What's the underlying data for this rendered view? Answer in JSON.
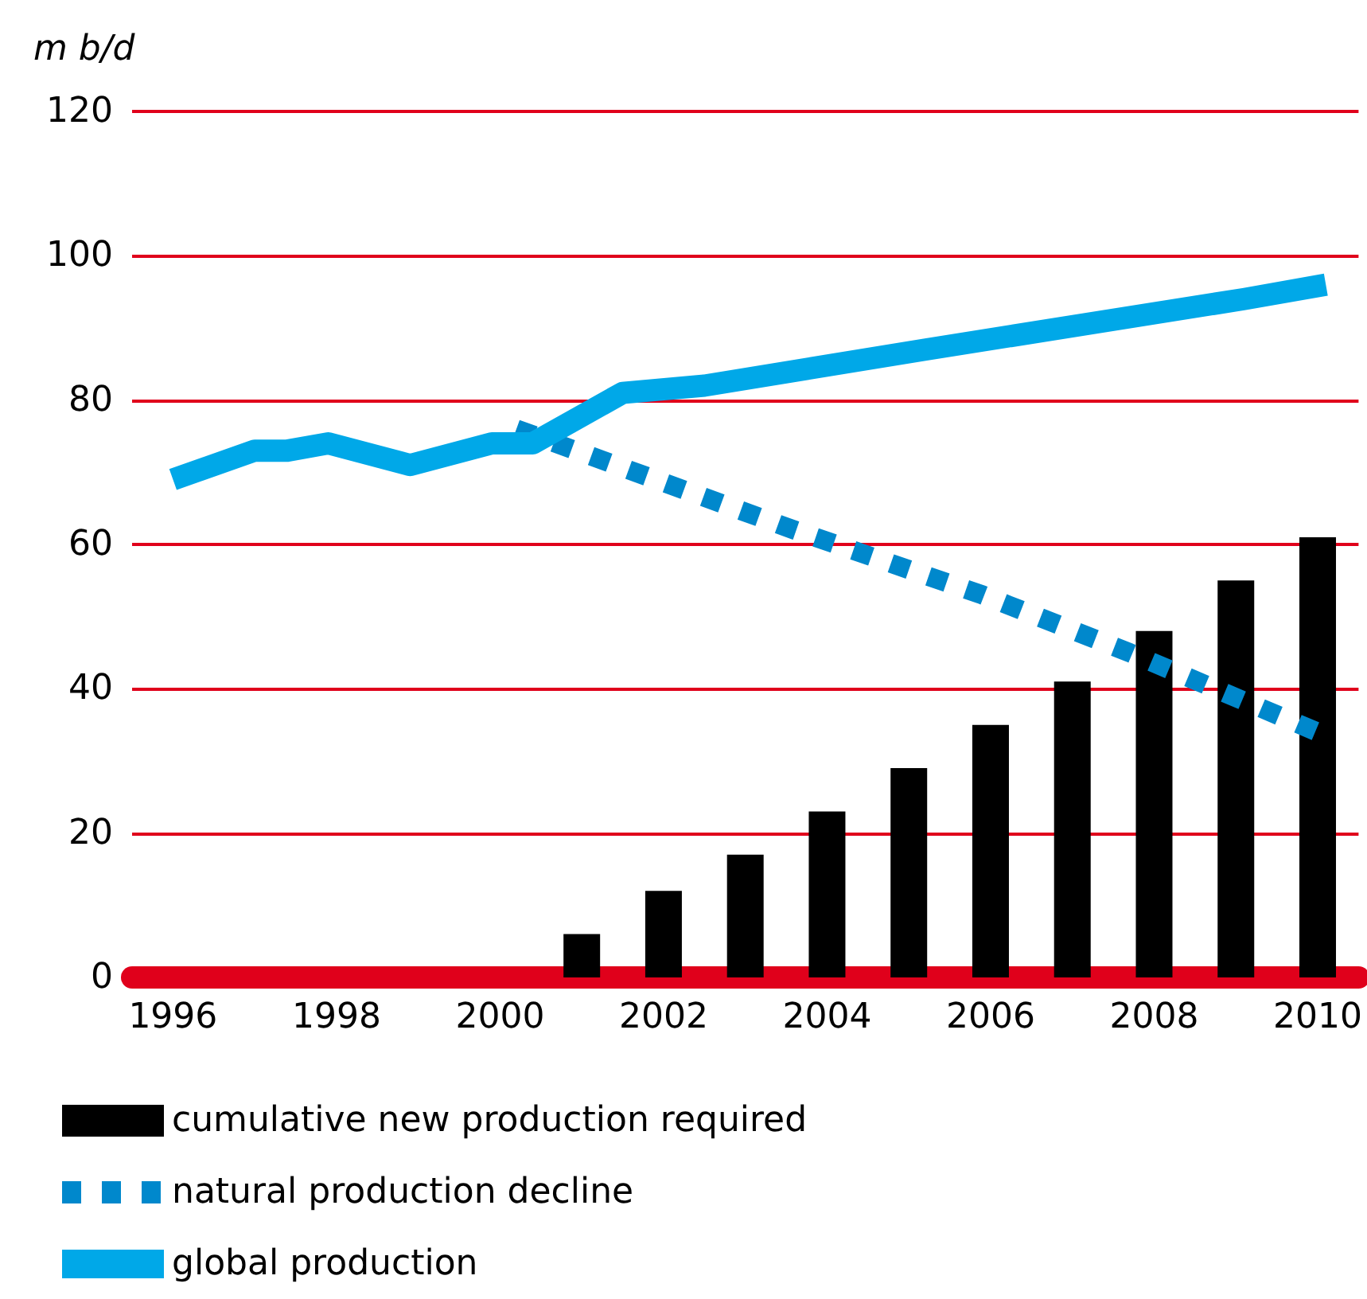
{
  "chart_data": {
    "type": "bar",
    "ylabel": "m b/d",
    "xlim": [
      1995.5,
      2010.5
    ],
    "xticks": [
      1996,
      1998,
      2000,
      2002,
      2004,
      2006,
      2008,
      2010
    ],
    "ylim": [
      0,
      120
    ],
    "yticks": [
      0,
      20,
      40,
      60,
      80,
      100,
      120
    ],
    "grid": "y",
    "legend": "bottom left",
    "series": [
      {
        "name": "cumulative new production required",
        "color": "#000000",
        "x": [
          2001,
          2002,
          2003,
          2004,
          2005,
          2006,
          2007,
          2008,
          2009,
          2010
        ],
        "values": [
          6,
          12,
          17,
          23,
          29,
          35,
          41,
          48,
          55,
          61
        ]
      },
      {
        "name": "natural production decline",
        "type": "line",
        "line_style": "dotted",
        "color": "#0088cc",
        "x": [
          2000.2,
          2003.6,
          2005.9,
          2007.7,
          2010
        ],
        "values": [
          76,
          62,
          53,
          45,
          34
        ]
      },
      {
        "name": "global production",
        "type": "line",
        "line_style": "solid",
        "color": "#00a8e8",
        "x": [
          1996,
          1997,
          1997.4,
          1997.9,
          1998.9,
          1999.9,
          2000.4,
          2001.5,
          2002.5,
          2005.2,
          2009.1,
          2010.1
        ],
        "values": [
          69,
          73,
          73,
          74,
          71,
          74,
          74,
          81,
          82,
          87,
          94,
          96
        ]
      }
    ]
  }
}
